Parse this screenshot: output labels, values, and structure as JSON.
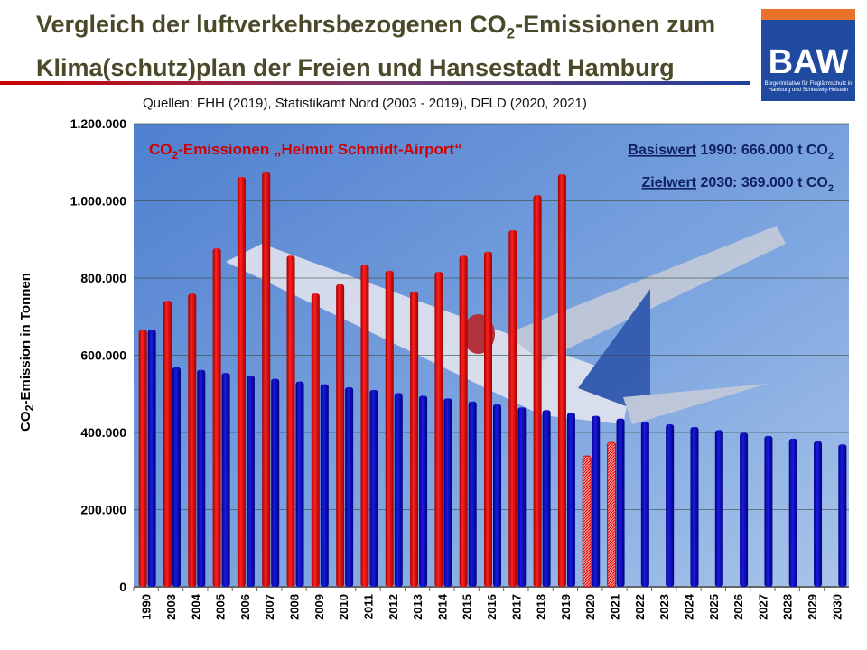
{
  "title_line1_pre": "Vergleich der luftverkehrsbezogenen CO",
  "title_line1_sub": "2",
  "title_line1_post": "-Emissionen zum",
  "title_line2": "Klima(schutz)plan der Freien und Hansestadt Hamburg",
  "logo": {
    "text": "BAW",
    "subtitle": "Bürgerinitiative für Fluglärmschutz in Hamburg und Schleswig-Holstein"
  },
  "sources": "Quellen: FHH (2019), Statistikamt Nord (2003 - 2019), DFLD (2020, 2021)",
  "colors": {
    "red": "#e00000",
    "blue": "#0000c0",
    "sky": "#6f9ad8"
  },
  "chart_data": {
    "type": "bar",
    "ylabel": "CO2-Emission in Tonnen",
    "ylim": [
      0,
      1200000
    ],
    "yticks": [
      "0",
      "200.000",
      "400.000",
      "600.000",
      "800.000",
      "1.000.000",
      "1.200.000"
    ],
    "grid": true,
    "categories": [
      "1990",
      "2003",
      "2004",
      "2005",
      "2006",
      "2007",
      "2008",
      "2009",
      "2010",
      "2011",
      "2012",
      "2013",
      "2014",
      "2015",
      "2016",
      "2017",
      "2018",
      "2019",
      "2020",
      "2021",
      "2022",
      "2023",
      "2024",
      "2025",
      "2026",
      "2027",
      "2028",
      "2029",
      "2030"
    ],
    "series": [
      {
        "name": "CO2-Emissionen „Helmut Schmidt-Airport“",
        "color": "#e00000",
        "values": [
          666000,
          741000,
          760000,
          877000,
          1062000,
          1074000,
          858000,
          760000,
          784000,
          835000,
          819000,
          765000,
          816000,
          858000,
          868000,
          924000,
          1015000,
          1069000,
          339000,
          374000,
          null,
          null,
          null,
          null,
          null,
          null,
          null,
          null,
          null
        ],
        "estimated": [
          "2020",
          "2021"
        ]
      },
      {
        "color": "#0000c0",
        "values": [
          666000,
          569000,
          562000,
          554000,
          547000,
          539000,
          532000,
          525000,
          517000,
          510000,
          502000,
          495000,
          488000,
          480000,
          473000,
          465000,
          458000,
          451000,
          443000,
          436000,
          428000,
          421000,
          414000,
          406000,
          399000,
          391000,
          384000,
          377000,
          369000
        ]
      }
    ],
    "annotations": {
      "legend_pre": "CO",
      "legend_sub": "2",
      "legend_post": "-Emissionen „Helmut Schmidt-Airport“",
      "basis_label": "Basiswert",
      "basis_text": " 1990: 666.000 t CO",
      "basis_sub": "2",
      "ziel_label": "Zielwert",
      "ziel_text": " 2030: 369.000 t CO",
      "ziel_sub": "2"
    },
    "ylabel_pre": "CO",
    "ylabel_sub": "2",
    "ylabel_post": "-Emission in Tonnen"
  }
}
